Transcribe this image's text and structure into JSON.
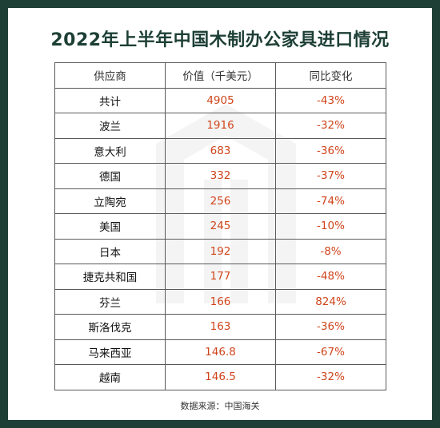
{
  "title": "2022年上半年中国木制办公家具进口情况",
  "table": {
    "headers": [
      "供应商",
      "价值（千美元）",
      "同比变化"
    ],
    "rows": [
      [
        "共计",
        "4905",
        "-43%"
      ],
      [
        "波兰",
        "1916",
        "-32%"
      ],
      [
        "意大利",
        "683",
        "-36%"
      ],
      [
        "德国",
        "332",
        "-37%"
      ],
      [
        "立陶宛",
        "256",
        "-74%"
      ],
      [
        "美国",
        "245",
        "-10%"
      ],
      [
        "日本",
        "192",
        "-8%"
      ],
      [
        "捷克共和国",
        "177",
        "-48%"
      ],
      [
        "芬兰",
        "166",
        "824%"
      ],
      [
        "斯洛伐克",
        "163",
        "-36%"
      ],
      [
        "马来西亚",
        "146.8",
        "-67%"
      ],
      [
        "越南",
        "146.5",
        "-32%"
      ]
    ]
  },
  "source": "数据来源：中国海关",
  "colors": {
    "background": "#1d3f35",
    "value_text": "#d0451b"
  }
}
